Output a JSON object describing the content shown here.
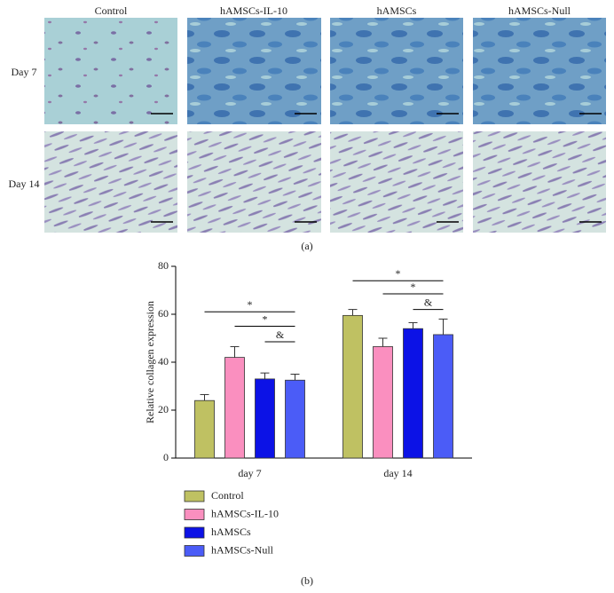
{
  "panel_a": {
    "columns": [
      "Control",
      "hAMSCs-IL-10",
      "hAMSCs",
      "hAMSCs-Null"
    ],
    "rows": [
      "Day 7",
      "Day 14"
    ],
    "label": "(a)"
  },
  "chart_data": {
    "type": "bar",
    "label": "(b)",
    "ylabel": "Relative collagen expression",
    "categories": [
      "day 7",
      "day 14"
    ],
    "series": [
      {
        "name": "Control",
        "color": "#bfc162",
        "values": [
          24,
          59.5
        ],
        "errors": [
          2.5,
          2.5
        ]
      },
      {
        "name": "hAMSCs-IL-10",
        "color": "#fa8fbf",
        "values": [
          42,
          46.5
        ],
        "errors": [
          4.5,
          3.5
        ]
      },
      {
        "name": "hAMSCs",
        "color": "#0c12e6",
        "values": [
          33,
          54
        ],
        "errors": [
          2.5,
          2.5
        ]
      },
      {
        "name": "hAMSCs-Null",
        "color": "#4b5cf7",
        "values": [
          32.5,
          51.5
        ],
        "errors": [
          2.5,
          6.5
        ]
      }
    ],
    "ylim": [
      0,
      80
    ],
    "yticks": [
      0,
      20,
      40,
      60,
      80
    ],
    "annotations": [
      {
        "text": "*",
        "group": 0,
        "series": [
          0,
          3
        ],
        "y": 61
      },
      {
        "text": "*",
        "group": 0,
        "series": [
          1,
          3
        ],
        "y": 55
      },
      {
        "text": "&",
        "group": 0,
        "series": [
          2,
          3
        ],
        "y": 48.5
      },
      {
        "text": "*",
        "group": 1,
        "series": [
          0,
          3
        ],
        "y": 74
      },
      {
        "text": "*",
        "group": 1,
        "series": [
          1,
          3
        ],
        "y": 68.5
      },
      {
        "text": "&",
        "group": 1,
        "series": [
          2,
          3
        ],
        "y": 62
      }
    ]
  }
}
